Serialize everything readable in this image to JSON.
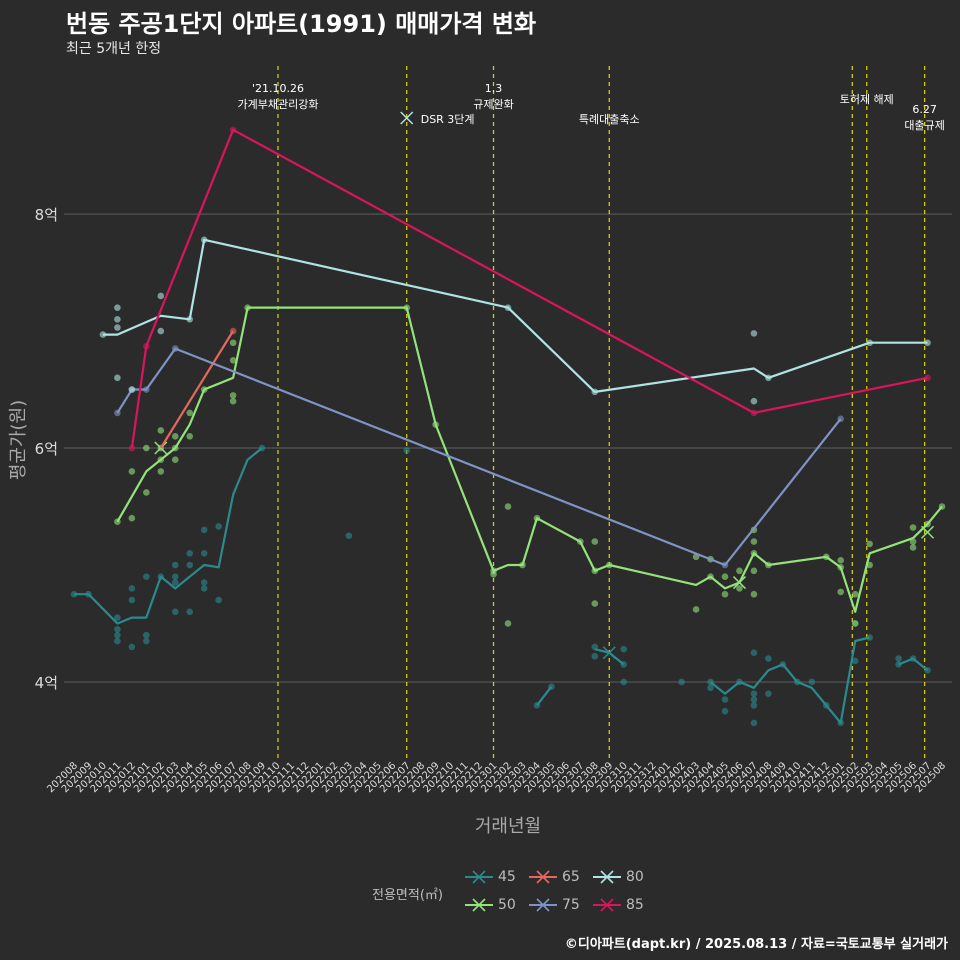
{
  "title": "번동 주공1단지 아파트(1991) 매매가격 변화",
  "subtitle": "최근 5개년 한정",
  "caption": "©디아파트(dapt.kr) / 2025.08.13 / 자료=국토교통부 실거래가",
  "legend": {
    "title": "전용면적(㎡)",
    "items": [
      {
        "label": "45",
        "color": "#2a8a8e"
      },
      {
        "label": "50",
        "color": "#93e37a"
      },
      {
        "label": "65",
        "color": "#e4685c"
      },
      {
        "label": "75",
        "color": "#7f93c4"
      },
      {
        "label": "80",
        "color": "#aee4e3"
      },
      {
        "label": "85",
        "color": "#d9155d"
      }
    ]
  },
  "chart_data": {
    "type": "line",
    "xlabel": "거래년월",
    "ylabel": "평균가(원)",
    "ylim": [
      3.35,
      9.3
    ],
    "yticks": [
      {
        "value": 4,
        "label": "4억"
      },
      {
        "value": 6,
        "label": "6억"
      },
      {
        "value": 8,
        "label": "8억"
      }
    ],
    "categories": [
      "202008",
      "202009",
      "202010",
      "202011",
      "202012",
      "202101",
      "202102",
      "202103",
      "202104",
      "202105",
      "202106",
      "202107",
      "202108",
      "202109",
      "202110",
      "202111",
      "202112",
      "202201",
      "202202",
      "202203",
      "202204",
      "202205",
      "202206",
      "202207",
      "202208",
      "202209",
      "202210",
      "202211",
      "202212",
      "202301",
      "202302",
      "202303",
      "202304",
      "202305",
      "202306",
      "202307",
      "202308",
      "202309",
      "202310",
      "202311",
      "202312",
      "202401",
      "202402",
      "202403",
      "202404",
      "202405",
      "202406",
      "202407",
      "202408",
      "202409",
      "202410",
      "202411",
      "202412",
      "202501",
      "202502",
      "202503",
      "202504",
      "202505",
      "202506",
      "202507",
      "202508"
    ],
    "grid": true,
    "events": [
      {
        "x": 14.1,
        "label": "'21.10.26\n가계부채관리강화",
        "row": 0
      },
      {
        "x": 23.0,
        "label": "DSR 3단계",
        "row": 1,
        "marker": true
      },
      {
        "x": 29.0,
        "label": "1.3\n규제완화",
        "row": 0
      },
      {
        "x": 37.0,
        "label": "특례대출축소",
        "row": 1
      },
      {
        "x": 53.8,
        "label": "",
        "row": 0
      },
      {
        "x": 54.8,
        "label": "토허제 해제",
        "row": 0
      },
      {
        "x": 58.8,
        "label": "6.27\n대출규제",
        "row": 2
      }
    ],
    "series": [
      {
        "name": "45",
        "color": "#2a8a8e",
        "line": [
          [
            0,
            4.75
          ],
          [
            1,
            4.75
          ],
          [
            3,
            4.5
          ],
          [
            4,
            4.55
          ],
          [
            5,
            4.55
          ],
          [
            6,
            4.9
          ],
          [
            7,
            4.8
          ],
          [
            8,
            4.9
          ],
          [
            9,
            5.0
          ],
          [
            10,
            4.98
          ],
          [
            11,
            5.6
          ],
          [
            12,
            5.9
          ],
          [
            13,
            6.0
          ]
        ],
        "line2": [
          [
            32,
            3.8
          ],
          [
            33,
            3.96
          ]
        ],
        "line3": [
          [
            36,
            4.28
          ],
          [
            37,
            4.25
          ],
          [
            38,
            4.15
          ]
        ],
        "line4": [
          [
            44,
            4.0
          ],
          [
            45,
            3.9
          ],
          [
            46,
            4.0
          ],
          [
            47,
            3.95
          ],
          [
            48,
            4.1
          ],
          [
            49,
            4.15
          ],
          [
            50,
            4.0
          ],
          [
            51,
            3.95
          ],
          [
            52,
            3.8
          ],
          [
            53,
            3.65
          ],
          [
            54,
            4.35
          ],
          [
            55,
            4.38
          ]
        ],
        "line5": [
          [
            57,
            4.15
          ],
          [
            58,
            4.2
          ],
          [
            59,
            4.1
          ]
        ],
        "points": [
          [
            0,
            4.75
          ],
          [
            1,
            4.75
          ],
          [
            3,
            4.4
          ],
          [
            3,
            4.35
          ],
          [
            3,
            4.45
          ],
          [
            3,
            4.55
          ],
          [
            4,
            4.3
          ],
          [
            4,
            4.7
          ],
          [
            4,
            4.8
          ],
          [
            5,
            4.4
          ],
          [
            5,
            4.35
          ],
          [
            5,
            4.9
          ],
          [
            6,
            4.9
          ],
          [
            7,
            4.6
          ],
          [
            7,
            4.85
          ],
          [
            7,
            4.9
          ],
          [
            7,
            5.0
          ],
          [
            8,
            4.6
          ],
          [
            8,
            5.0
          ],
          [
            8,
            5.1
          ],
          [
            9,
            4.8
          ],
          [
            9,
            4.85
          ],
          [
            9,
            5.1
          ],
          [
            9,
            5.3
          ],
          [
            10,
            4.7
          ],
          [
            10,
            5.33
          ],
          [
            13,
            6.0
          ],
          [
            19,
            5.25
          ],
          [
            23,
            5.98
          ],
          [
            32,
            3.8
          ],
          [
            33,
            3.96
          ],
          [
            36,
            4.22
          ],
          [
            36,
            4.3
          ],
          [
            38,
            4.15
          ],
          [
            38,
            4.28
          ],
          [
            38,
            4.0
          ],
          [
            42,
            4.0
          ],
          [
            44,
            4.0
          ],
          [
            44,
            3.95
          ],
          [
            45,
            3.75
          ],
          [
            45,
            3.85
          ],
          [
            46,
            4.0
          ],
          [
            47,
            3.65
          ],
          [
            47,
            3.8
          ],
          [
            47,
            3.85
          ],
          [
            47,
            3.9
          ],
          [
            47,
            4.25
          ],
          [
            48,
            3.9
          ],
          [
            48,
            4.2
          ],
          [
            49,
            4.15
          ],
          [
            50,
            4.0
          ],
          [
            51,
            4.0
          ],
          [
            52,
            3.8
          ],
          [
            53,
            3.65
          ],
          [
            54,
            4.18
          ],
          [
            54,
            4.5
          ],
          [
            55,
            4.38
          ],
          [
            57,
            4.2
          ],
          [
            57,
            4.15
          ],
          [
            58,
            4.2
          ],
          [
            59,
            4.1
          ]
        ],
        "crosses": [
          [
            37,
            4.25
          ]
        ]
      },
      {
        "name": "50",
        "color": "#93e37a",
        "line": [
          [
            3,
            5.37
          ],
          [
            5,
            5.8
          ],
          [
            6,
            5.9
          ],
          [
            7,
            6.0
          ],
          [
            8,
            6.2
          ],
          [
            9,
            6.5
          ],
          [
            10,
            6.55
          ],
          [
            11,
            6.6
          ],
          [
            12,
            7.2
          ],
          [
            20,
            7.2
          ],
          [
            23,
            7.2
          ],
          [
            25,
            6.2
          ],
          [
            29,
            4.95
          ],
          [
            30,
            5.0
          ],
          [
            31,
            5.0
          ],
          [
            32,
            5.4
          ],
          [
            35,
            5.2
          ],
          [
            36,
            4.95
          ],
          [
            37,
            5.0
          ],
          [
            43,
            4.83
          ],
          [
            44,
            4.9
          ],
          [
            45,
            4.8
          ],
          [
            46,
            4.85
          ],
          [
            47,
            5.1
          ],
          [
            48,
            5.0
          ],
          [
            52,
            5.07
          ],
          [
            53,
            4.98
          ],
          [
            54,
            4.6
          ],
          [
            55,
            5.1
          ],
          [
            58,
            5.23
          ],
          [
            59,
            5.35
          ],
          [
            60,
            5.5
          ]
        ],
        "points": [
          [
            3,
            5.37
          ],
          [
            4,
            5.4
          ],
          [
            4,
            5.8
          ],
          [
            5,
            5.62
          ],
          [
            5,
            6.0
          ],
          [
            6,
            5.8
          ],
          [
            6,
            5.9
          ],
          [
            6,
            6.0
          ],
          [
            6,
            6.15
          ],
          [
            7,
            5.9
          ],
          [
            7,
            6.0
          ],
          [
            7,
            6.1
          ],
          [
            8,
            6.1
          ],
          [
            8,
            6.3
          ],
          [
            9,
            6.5
          ],
          [
            11,
            6.4
          ],
          [
            11,
            6.45
          ],
          [
            11,
            6.75
          ],
          [
            11,
            6.9
          ],
          [
            12,
            7.2
          ],
          [
            23,
            7.2
          ],
          [
            25,
            6.2
          ],
          [
            29,
            4.92
          ],
          [
            29,
            4.95
          ],
          [
            30,
            5.5
          ],
          [
            30,
            4.5
          ],
          [
            31,
            5.0
          ],
          [
            32,
            5.4
          ],
          [
            35,
            5.2
          ],
          [
            36,
            5.2
          ],
          [
            36,
            4.95
          ],
          [
            36,
            4.67
          ],
          [
            37,
            5.0
          ],
          [
            43,
            5.07
          ],
          [
            43,
            4.62
          ],
          [
            44,
            5.05
          ],
          [
            44,
            4.9
          ],
          [
            45,
            4.9
          ],
          [
            45,
            4.75
          ],
          [
            46,
            4.8
          ],
          [
            46,
            4.95
          ],
          [
            47,
            5.2
          ],
          [
            47,
            5.3
          ],
          [
            47,
            5.1
          ],
          [
            47,
            4.95
          ],
          [
            47,
            4.75
          ],
          [
            48,
            5.0
          ],
          [
            52,
            5.07
          ],
          [
            53,
            5.04
          ],
          [
            53,
            4.98
          ],
          [
            53,
            4.77
          ],
          [
            54,
            4.5
          ],
          [
            54,
            4.75
          ],
          [
            55,
            5.0
          ],
          [
            55,
            5.18
          ],
          [
            58,
            5.32
          ],
          [
            58,
            5.15
          ],
          [
            58,
            5.2
          ],
          [
            59,
            5.35
          ],
          [
            60,
            5.5
          ]
        ],
        "crosses": [
          [
            6,
            6.0
          ],
          [
            46,
            4.85
          ],
          [
            59,
            5.28
          ]
        ]
      },
      {
        "name": "65",
        "color": "#e4685c",
        "line": [
          [
            6,
            6.0
          ],
          [
            11,
            7.0
          ]
        ],
        "points": [
          [
            11,
            7.0
          ]
        ],
        "crosses": []
      },
      {
        "name": "75",
        "color": "#7f93c4",
        "line": [
          [
            3,
            6.3
          ],
          [
            4,
            6.5
          ],
          [
            5,
            6.5
          ],
          [
            7,
            6.85
          ],
          [
            45,
            5.0
          ],
          [
            53,
            6.25
          ]
        ],
        "points": [
          [
            3,
            6.3
          ],
          [
            4,
            6.5
          ],
          [
            5,
            6.5
          ],
          [
            7,
            6.85
          ],
          [
            45,
            5.0
          ],
          [
            53,
            6.25
          ]
        ],
        "crosses": []
      },
      {
        "name": "80",
        "color": "#aee4e3",
        "line": [
          [
            2,
            6.97
          ],
          [
            3,
            6.97
          ],
          [
            6,
            7.13
          ],
          [
            8,
            7.1
          ],
          [
            9,
            7.78
          ],
          [
            30,
            7.2
          ],
          [
            36,
            6.48
          ],
          [
            47,
            6.68
          ],
          [
            48,
            6.6
          ],
          [
            55,
            6.9
          ],
          [
            59,
            6.9
          ]
        ],
        "points": [
          [
            2,
            6.97
          ],
          [
            3,
            7.2
          ],
          [
            3,
            7.1
          ],
          [
            3,
            7.03
          ],
          [
            3,
            6.6
          ],
          [
            4,
            6.5
          ],
          [
            6,
            7.3
          ],
          [
            6,
            7.0
          ],
          [
            8,
            7.1
          ],
          [
            9,
            7.78
          ],
          [
            30,
            7.2
          ],
          [
            36,
            6.48
          ],
          [
            47,
            6.98
          ],
          [
            47,
            6.4
          ],
          [
            48,
            6.6
          ],
          [
            55,
            6.9
          ],
          [
            59,
            6.9
          ]
        ],
        "crosses": []
      },
      {
        "name": "85",
        "color": "#d9155d",
        "line": [
          [
            4,
            6.0
          ],
          [
            5,
            6.87
          ],
          [
            11,
            8.72
          ],
          [
            47,
            6.3
          ],
          [
            59,
            6.6
          ]
        ],
        "points": [
          [
            4,
            6.0
          ],
          [
            5,
            6.87
          ],
          [
            11,
            8.72
          ],
          [
            47,
            6.3
          ],
          [
            59,
            6.6
          ]
        ],
        "crosses": []
      }
    ]
  }
}
